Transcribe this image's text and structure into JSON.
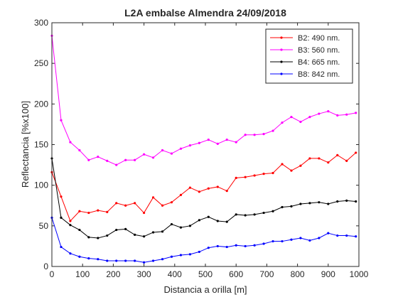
{
  "chart_data": {
    "type": "line",
    "title": "L2A embalse Almendra 24/09/2018",
    "xlabel": "Distancia a orilla [m]",
    "ylabel": "Reflectancia [%x100]",
    "xlim": [
      0,
      1000
    ],
    "ylim": [
      0,
      300
    ],
    "xticks": [
      0,
      100,
      200,
      300,
      400,
      500,
      600,
      700,
      800,
      900,
      1000
    ],
    "yticks": [
      0,
      50,
      100,
      150,
      200,
      250,
      300
    ],
    "xtick_labels": [
      "0",
      "100",
      "200",
      "300",
      "400",
      "500",
      "600",
      "700",
      "800",
      "900",
      "1000"
    ],
    "ytick_labels": [
      "0",
      "50",
      "100",
      "150",
      "200",
      "250",
      "300"
    ],
    "grid": false,
    "legend_position": "top-right",
    "x": [
      0,
      30,
      60,
      90,
      120,
      150,
      180,
      210,
      240,
      270,
      300,
      330,
      360,
      390,
      420,
      450,
      480,
      510,
      540,
      570,
      600,
      630,
      660,
      690,
      720,
      750,
      780,
      810,
      840,
      870,
      900,
      930,
      960,
      990
    ],
    "series": [
      {
        "name": "B2: 490 nm.",
        "color": "#ff0000",
        "values": [
          116,
          86,
          56,
          68,
          66,
          69,
          67,
          78,
          75,
          78,
          66,
          85,
          75,
          79,
          88,
          97,
          92,
          96,
          98,
          93,
          109,
          110,
          112,
          114,
          115,
          126,
          118,
          124,
          133,
          133,
          128,
          137,
          130,
          140
        ]
      },
      {
        "name": "B3: 560 nm.",
        "color": "#ff00ff",
        "values": [
          284,
          180,
          153,
          143,
          131,
          135,
          130,
          125,
          131,
          131,
          138,
          134,
          143,
          139,
          145,
          149,
          152,
          156,
          151,
          156,
          153,
          162,
          162,
          163,
          167,
          177,
          184,
          178,
          184,
          188,
          191,
          186,
          187,
          189
        ]
      },
      {
        "name": "B4: 665 nm.",
        "color": "#000000",
        "values": [
          133,
          60,
          51,
          45,
          36,
          35,
          38,
          45,
          46,
          39,
          37,
          42,
          43,
          52,
          48,
          50,
          57,
          61,
          56,
          55,
          64,
          63,
          64,
          66,
          68,
          73,
          74,
          77,
          78,
          79,
          77,
          80,
          81,
          80
        ]
      },
      {
        "name": "B8: 842 nm.",
        "color": "#0000ff",
        "values": [
          60,
          24,
          16,
          12,
          10,
          9,
          7,
          7,
          7,
          7,
          5,
          7,
          9,
          12,
          14,
          15,
          18,
          23,
          25,
          24,
          26,
          25,
          26,
          28,
          31,
          31,
          33,
          35,
          32,
          35,
          41,
          38,
          38,
          37
        ]
      }
    ]
  }
}
